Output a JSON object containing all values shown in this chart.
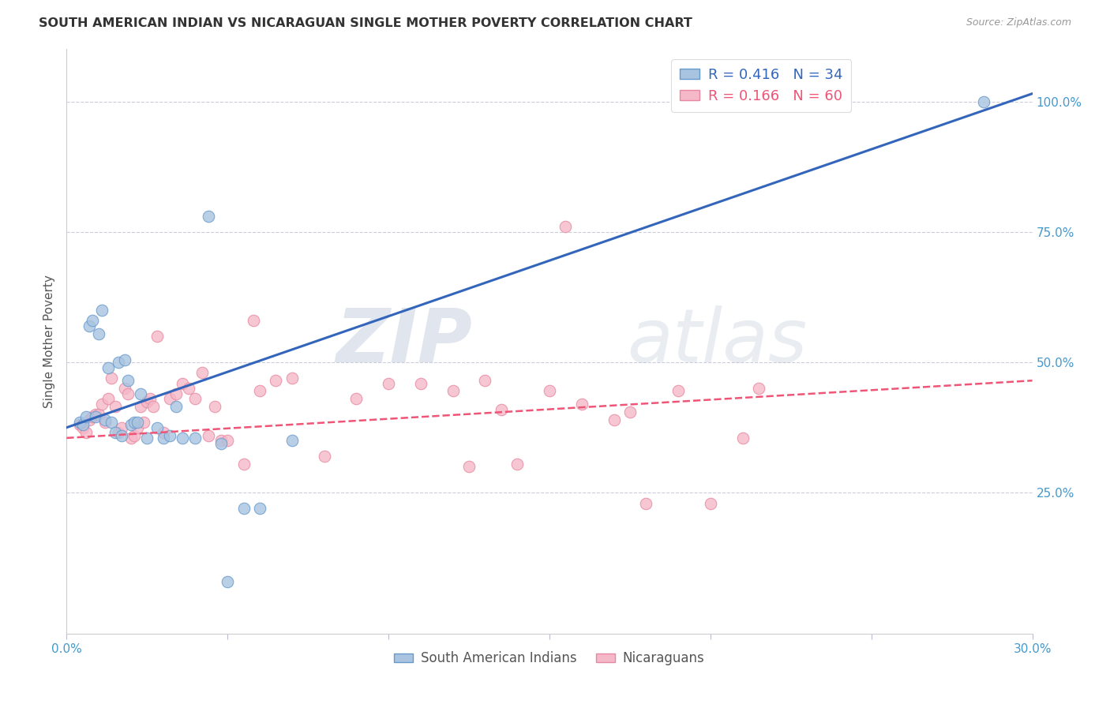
{
  "title": "SOUTH AMERICAN INDIAN VS NICARAGUAN SINGLE MOTHER POVERTY CORRELATION CHART",
  "source": "Source: ZipAtlas.com",
  "ylabel": "Single Mother Poverty",
  "xlim": [
    0.0,
    0.3
  ],
  "ylim": [
    -0.02,
    1.1
  ],
  "xticks": [
    0.0,
    0.05,
    0.1,
    0.15,
    0.2,
    0.25,
    0.3
  ],
  "xticklabels": [
    "0.0%",
    "",
    "",
    "",
    "",
    "",
    "30.0%"
  ],
  "ytick_positions": [
    0.25,
    0.5,
    0.75,
    1.0
  ],
  "ytick_labels": [
    "25.0%",
    "50.0%",
    "75.0%",
    "100.0%"
  ],
  "blue_R": 0.416,
  "blue_N": 34,
  "pink_R": 0.166,
  "pink_N": 60,
  "blue_line_x": [
    0.0,
    0.3
  ],
  "blue_line_y": [
    0.375,
    1.015
  ],
  "pink_line_x": [
    0.0,
    0.3
  ],
  "pink_line_y": [
    0.355,
    0.465
  ],
  "blue_fill": "#A8C4E0",
  "blue_edge": "#6699CC",
  "pink_fill": "#F4B8C8",
  "pink_edge": "#E888A0",
  "blue_line_color": "#3366BB",
  "pink_line_color": "#EE5577",
  "grid_color": "#CCCCDD",
  "background_color": "#FFFFFF",
  "watermark_zip_color": "#99AACC",
  "watermark_atlas_color": "#AABBCC",
  "legend_label_blue": "South American Indians",
  "legend_label_pink": "Nicaraguans",
  "blue_scatter_x": [
    0.004,
    0.005,
    0.006,
    0.007,
    0.008,
    0.009,
    0.01,
    0.011,
    0.012,
    0.013,
    0.014,
    0.015,
    0.016,
    0.017,
    0.018,
    0.019,
    0.02,
    0.021,
    0.022,
    0.023,
    0.025,
    0.028,
    0.03,
    0.032,
    0.034,
    0.036,
    0.04,
    0.044,
    0.048,
    0.05,
    0.055,
    0.06,
    0.07,
    0.285
  ],
  "blue_scatter_y": [
    0.385,
    0.38,
    0.395,
    0.57,
    0.58,
    0.395,
    0.555,
    0.6,
    0.39,
    0.49,
    0.385,
    0.365,
    0.5,
    0.36,
    0.505,
    0.465,
    0.38,
    0.385,
    0.385,
    0.44,
    0.355,
    0.375,
    0.355,
    0.36,
    0.415,
    0.355,
    0.355,
    0.78,
    0.345,
    0.08,
    0.22,
    0.22,
    0.35,
    1.0
  ],
  "pink_scatter_x": [
    0.004,
    0.005,
    0.006,
    0.007,
    0.008,
    0.009,
    0.01,
    0.011,
    0.012,
    0.013,
    0.014,
    0.015,
    0.016,
    0.017,
    0.018,
    0.019,
    0.02,
    0.021,
    0.022,
    0.023,
    0.024,
    0.025,
    0.026,
    0.027,
    0.028,
    0.03,
    0.032,
    0.034,
    0.036,
    0.038,
    0.04,
    0.042,
    0.044,
    0.046,
    0.048,
    0.05,
    0.055,
    0.058,
    0.06,
    0.065,
    0.07,
    0.08,
    0.09,
    0.1,
    0.11,
    0.12,
    0.13,
    0.14,
    0.15,
    0.16,
    0.17,
    0.18,
    0.19,
    0.2,
    0.21,
    0.215,
    0.155,
    0.175,
    0.135,
    0.125
  ],
  "pink_scatter_y": [
    0.38,
    0.375,
    0.365,
    0.39,
    0.395,
    0.4,
    0.4,
    0.42,
    0.385,
    0.43,
    0.47,
    0.415,
    0.365,
    0.375,
    0.45,
    0.44,
    0.355,
    0.36,
    0.375,
    0.415,
    0.385,
    0.425,
    0.43,
    0.415,
    0.55,
    0.365,
    0.43,
    0.44,
    0.46,
    0.45,
    0.43,
    0.48,
    0.36,
    0.415,
    0.35,
    0.35,
    0.305,
    0.58,
    0.445,
    0.465,
    0.47,
    0.32,
    0.43,
    0.46,
    0.46,
    0.445,
    0.465,
    0.305,
    0.445,
    0.42,
    0.39,
    0.23,
    0.445,
    0.23,
    0.355,
    0.45,
    0.76,
    0.405,
    0.41,
    0.3
  ]
}
